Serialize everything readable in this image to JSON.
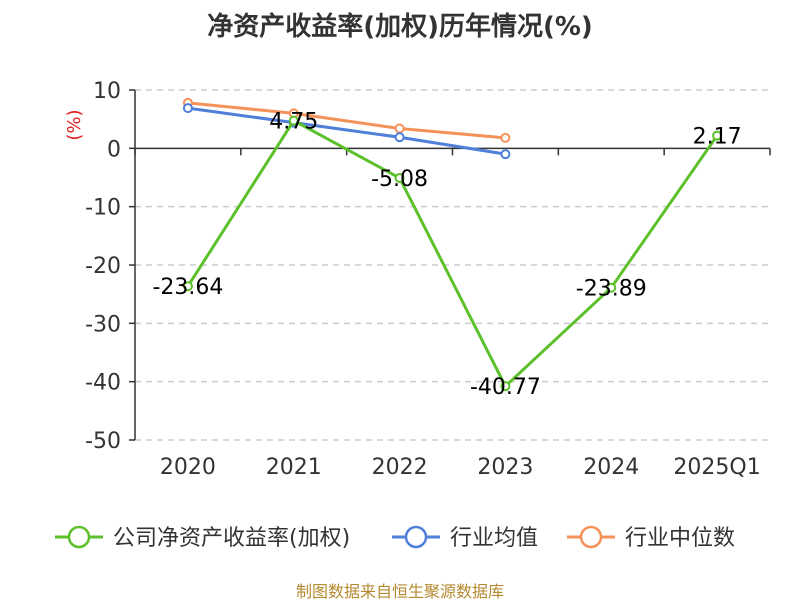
{
  "title": "净资产收益率(加权)历年情况(%)",
  "footer": "制图数据来自恒生聚源数据库",
  "chart_data": {
    "type": "line",
    "categories": [
      "2020",
      "2021",
      "2022",
      "2023",
      "2024",
      "2025Q1"
    ],
    "ylabel": "(%)",
    "ylim": [
      -50,
      10
    ],
    "yticks": [
      10,
      0,
      -10,
      -20,
      -30,
      -40,
      -50
    ],
    "grid": true,
    "legend_position": "bottom",
    "series": [
      {
        "name": "公司净资产收益率(加权)",
        "color": "#5cc02b",
        "values": [
          -23.64,
          4.75,
          -5.08,
          -40.77,
          -23.89,
          2.17
        ],
        "labels": [
          "-23.64",
          "4.75",
          "-5.08",
          "-40.77",
          "-23.89",
          "2.17"
        ]
      },
      {
        "name": "行业均值",
        "color": "#4f7fd9",
        "values": [
          6.9,
          4.4,
          1.9,
          -1.0,
          null,
          null
        ]
      },
      {
        "name": "行业中位数",
        "color": "#f5925a",
        "values": [
          7.8,
          6.0,
          3.4,
          1.8,
          null,
          null
        ]
      }
    ]
  }
}
